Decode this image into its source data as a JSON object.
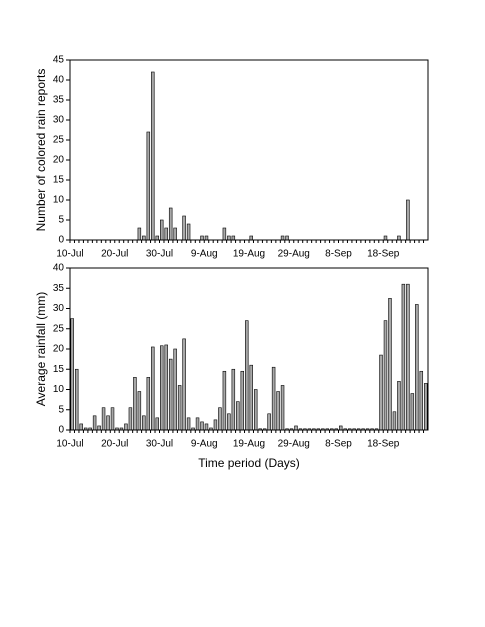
{
  "chart_data": [
    {
      "type": "bar",
      "ylabel": "Number of colored rain reports",
      "categories": [
        "10-Jul",
        null,
        null,
        null,
        null,
        null,
        null,
        null,
        null,
        null,
        "20-Jul",
        null,
        null,
        null,
        null,
        null,
        null,
        null,
        null,
        null,
        "30-Jul",
        null,
        null,
        null,
        null,
        null,
        null,
        null,
        null,
        null,
        "9-Aug",
        null,
        null,
        null,
        null,
        null,
        null,
        null,
        null,
        null,
        "19-Aug",
        null,
        null,
        null,
        null,
        null,
        null,
        null,
        null,
        null,
        "29-Aug",
        null,
        null,
        null,
        null,
        null,
        null,
        null,
        null,
        null,
        "8-Sep",
        null,
        null,
        null,
        null,
        null,
        null,
        null,
        null,
        null,
        "18-Sep",
        null,
        null,
        null,
        null,
        null,
        null,
        null,
        null,
        null
      ],
      "values": [
        0,
        0,
        0,
        0,
        0,
        0,
        0,
        0,
        0,
        0,
        0,
        0,
        0,
        0,
        0,
        3,
        1,
        27,
        42,
        1,
        5,
        3,
        8,
        3,
        0,
        6,
        4,
        0,
        0,
        1,
        1,
        0,
        0,
        0,
        3,
        1,
        1,
        0,
        0,
        0,
        1,
        0,
        0,
        0,
        0,
        0,
        0,
        1,
        1,
        0,
        0,
        0,
        0,
        0,
        0,
        0,
        0,
        0,
        0,
        0,
        0,
        0,
        0,
        0,
        0,
        0,
        0,
        0,
        0,
        0,
        1,
        0,
        0,
        1,
        0,
        10,
        0,
        0,
        0,
        0
      ],
      "color": "#a8a8a8",
      "ylim": [
        0,
        45
      ],
      "yticks": [
        0,
        5,
        10,
        15,
        20,
        25,
        30,
        35,
        40,
        45
      ]
    },
    {
      "type": "bar",
      "ylabel": "Average rainfall (mm)",
      "xlabel": "Time period (Days)",
      "categories": [
        "10-Jul",
        null,
        null,
        null,
        null,
        null,
        null,
        null,
        null,
        null,
        "20-Jul",
        null,
        null,
        null,
        null,
        null,
        null,
        null,
        null,
        null,
        "30-Jul",
        null,
        null,
        null,
        null,
        null,
        null,
        null,
        null,
        null,
        "9-Aug",
        null,
        null,
        null,
        null,
        null,
        null,
        null,
        null,
        null,
        "19-Aug",
        null,
        null,
        null,
        null,
        null,
        null,
        null,
        null,
        null,
        "29-Aug",
        null,
        null,
        null,
        null,
        null,
        null,
        null,
        null,
        null,
        "8-Sep",
        null,
        null,
        null,
        null,
        null,
        null,
        null,
        null,
        null,
        "18-Sep",
        null,
        null,
        null,
        null,
        null,
        null,
        null,
        null,
        null
      ],
      "values": [
        27.5,
        15,
        1.5,
        0.5,
        0.5,
        3.5,
        1,
        5.5,
        3.5,
        5.5,
        0.5,
        0.5,
        1.5,
        5.5,
        13,
        9.5,
        3.5,
        13,
        20.5,
        3,
        20.8,
        21,
        17.5,
        20,
        11,
        22.5,
        3,
        0.5,
        3,
        2,
        1.5,
        0.5,
        2.5,
        5.5,
        14.5,
        4,
        15,
        7,
        14.5,
        27,
        16,
        10,
        0.3,
        0.3,
        4,
        15.5,
        9.5,
        11,
        0.3,
        0.3,
        1,
        0.3,
        0.3,
        0.3,
        0.3,
        0.3,
        0.3,
        0.3,
        0.3,
        0.3,
        1,
        0.3,
        0.3,
        0.3,
        0.3,
        0.3,
        0.3,
        0.3,
        0.3,
        18.5,
        27,
        32.5,
        4.5,
        12,
        36,
        36,
        9,
        31,
        14.5,
        11.5
      ],
      "color": "#a8a8a8",
      "ylim": [
        0,
        40
      ],
      "yticks": [
        0,
        5,
        10,
        15,
        20,
        25,
        30,
        35,
        40
      ]
    }
  ]
}
